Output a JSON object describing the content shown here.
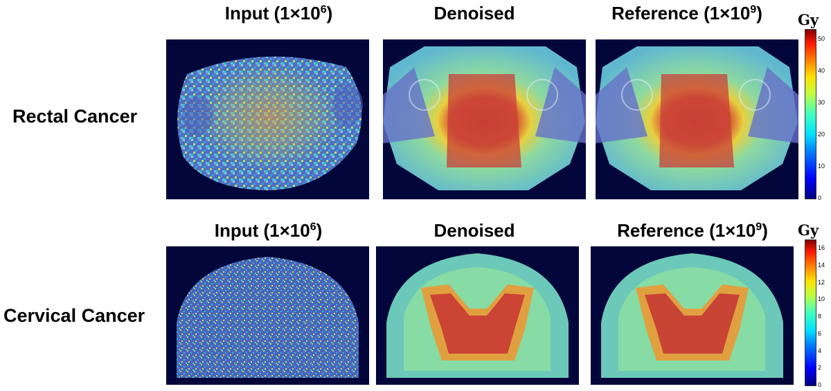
{
  "columns": [
    {
      "title": "Input (1×10",
      "sup": "6",
      "close": ")"
    },
    {
      "title": "Denoised",
      "sup": "",
      "close": ""
    },
    {
      "title": "Reference (1×10",
      "sup": "9",
      "close": ")"
    }
  ],
  "rows": [
    {
      "label": "Rectal Cancer"
    },
    {
      "label": "Cervical Cancer"
    }
  ],
  "colorbars": [
    {
      "unit": "Gy",
      "ticks": [
        "50",
        "40",
        "30",
        "20",
        "10",
        "0"
      ],
      "max": 53
    },
    {
      "unit": "Gy",
      "ticks": [
        "16",
        "14",
        "12",
        "10",
        "8",
        "6",
        "4",
        "2",
        "0"
      ],
      "max": 17
    }
  ]
}
